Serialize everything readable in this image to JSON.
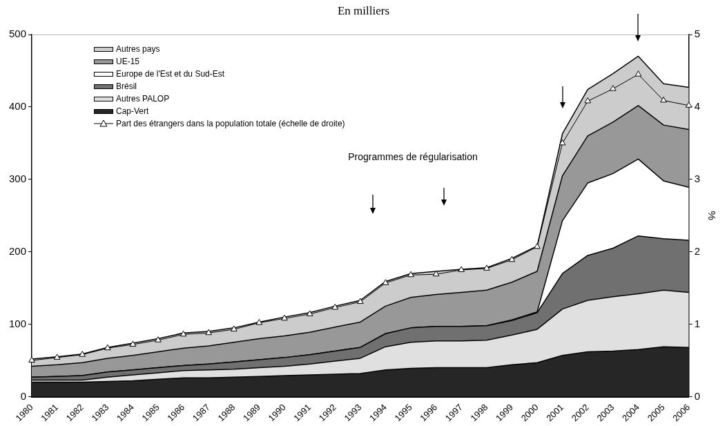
{
  "chart_data": {
    "type": "area",
    "title": "En milliers",
    "y2label": "%",
    "stacked": true,
    "legend": "top left",
    "grid": false,
    "categories": [
      "1980",
      "1981",
      "1982",
      "1983",
      "1984",
      "1985",
      "1986",
      "1987",
      "1988",
      "1989",
      "1990",
      "1991",
      "1992",
      "1993",
      "1994",
      "1995",
      "1996",
      "1997",
      "1998",
      "1999",
      "2000",
      "2001",
      "2002",
      "2003",
      "2004",
      "2005",
      "2006"
    ],
    "ylim": [
      0,
      500
    ],
    "yticks": [
      0,
      100,
      200,
      300,
      400,
      500
    ],
    "y2lim": [
      0,
      5
    ],
    "y2ticks": [
      0,
      1,
      2,
      3,
      4,
      5
    ],
    "series": [
      {
        "name": "Cap-Vert",
        "color": "#262626",
        "values": [
          20,
          20,
          20,
          21,
          22,
          24,
          26,
          26,
          27,
          28,
          29,
          30,
          31,
          32,
          37,
          39,
          40,
          40,
          40,
          44,
          47,
          57,
          62,
          63,
          65,
          69,
          68
        ]
      },
      {
        "name": "Autres PALOP",
        "color": "#e0e0e0",
        "values": [
          3,
          3,
          3,
          6,
          8,
          9,
          10,
          11,
          11,
          12,
          13,
          15,
          18,
          21,
          32,
          36,
          37,
          37,
          38,
          41,
          46,
          64,
          71,
          75,
          77,
          78,
          76
        ]
      },
      {
        "name": "Brésil",
        "color": "#707070",
        "values": [
          4,
          5,
          6,
          7,
          7,
          7,
          7,
          8,
          10,
          11,
          12,
          13,
          14,
          15,
          18,
          20,
          20,
          20,
          20,
          20,
          23,
          49,
          62,
          67,
          80,
          71,
          72
        ]
      },
      {
        "name": "Europe de l'Est et du Sud-Est",
        "color": "#ffffff",
        "values": [
          0,
          0,
          0,
          0,
          0,
          0,
          0,
          0,
          0,
          0,
          0,
          0,
          0,
          0,
          0,
          0,
          0,
          0,
          0,
          1,
          1,
          73,
          100,
          103,
          106,
          80,
          73
        ]
      },
      {
        "name": "UE-15",
        "color": "#989898",
        "values": [
          15,
          16,
          18,
          19,
          20,
          22,
          24,
          25,
          27,
          29,
          30,
          31,
          33,
          35,
          38,
          42,
          44,
          47,
          49,
          52,
          56,
          62,
          65,
          71,
          74,
          77,
          80
        ]
      },
      {
        "name": "Autres pays",
        "color": "#cccccc",
        "values": [
          10,
          11,
          12,
          15,
          17,
          18,
          21,
          20,
          20,
          23,
          26,
          27,
          29,
          30,
          34,
          33,
          32,
          32,
          31,
          33,
          35,
          58,
          64,
          67,
          68,
          57,
          58
        ]
      },
      {
        "name": "Part des étrangers dans la population totale (échelle de droite)",
        "type": "line",
        "axis": "y2",
        "color": "#000000",
        "marker": "triangle",
        "values": [
          0.5,
          0.54,
          0.58,
          0.67,
          0.72,
          0.78,
          0.86,
          0.88,
          0.93,
          1.02,
          1.08,
          1.14,
          1.23,
          1.31,
          1.57,
          1.68,
          1.69,
          1.75,
          1.77,
          1.89,
          2.07,
          3.5,
          4.08,
          4.25,
          4.45,
          4.09,
          4.02
        ]
      }
    ],
    "annotations": [
      "Programmes de régularisation"
    ]
  }
}
